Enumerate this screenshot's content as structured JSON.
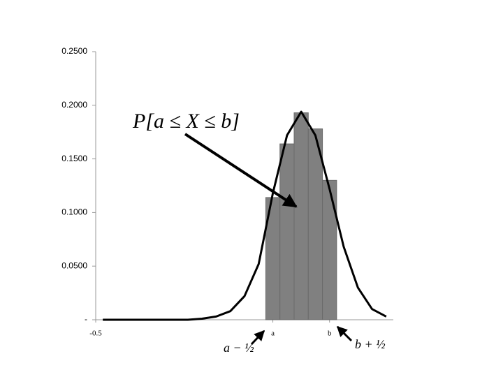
{
  "chart_data": {
    "type": "histogram",
    "bins": [
      11.5,
      12.5,
      13.5,
      14.5,
      15.5,
      16.5
    ],
    "values": [
      0.114,
      0.164,
      0.193,
      0.178,
      0.13
    ],
    "color": "#808080",
    "curve": {
      "type": "line",
      "x": [
        0,
        1,
        2,
        3,
        4,
        5,
        6,
        7,
        8,
        9,
        10,
        11,
        12,
        13,
        14,
        15,
        16,
        17,
        18,
        19,
        20
      ],
      "values": [
        0,
        0,
        0,
        0,
        0,
        0,
        0,
        0.001,
        0.003,
        0.008,
        0.022,
        0.052,
        0.118,
        0.172,
        0.194,
        0.172,
        0.122,
        0.068,
        0.03,
        0.01,
        0.003
      ],
      "color": "#000000"
    },
    "xlim": [
      -0.5,
      20.5
    ],
    "xticks": [
      {
        "value": -0.5,
        "label": "-0.5"
      },
      {
        "value": 12,
        "label": "a"
      },
      {
        "value": 16,
        "label": "b"
      }
    ],
    "ylim": [
      0,
      0.25
    ],
    "yticks": [
      {
        "value": 0,
        "label": "-"
      },
      {
        "value": 0.05,
        "label": "0.0500"
      },
      {
        "value": 0.1,
        "label": "0.1000"
      },
      {
        "value": 0.15,
        "label": "0.1500"
      },
      {
        "value": 0.2,
        "label": "0.2000"
      },
      {
        "value": 0.25,
        "label": "0.2500"
      }
    ],
    "annotations": [
      "P[a ≤ X ≤ b]",
      "a − ½",
      "b + ½"
    ]
  }
}
